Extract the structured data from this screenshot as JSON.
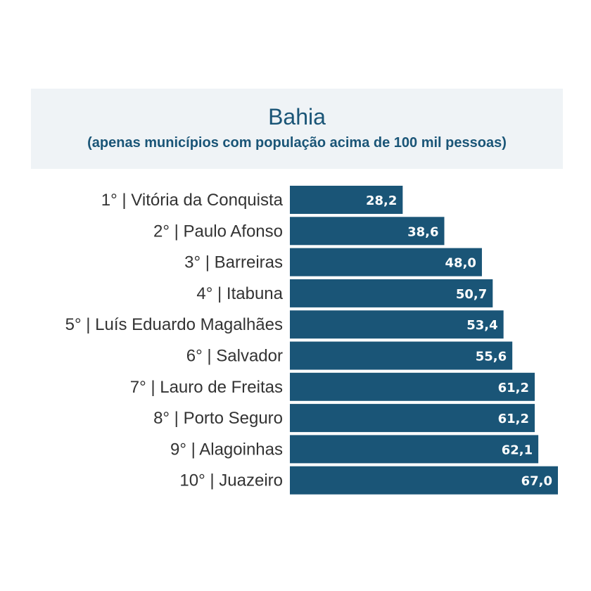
{
  "colors": {
    "bar": "#1a5577",
    "header_bg": "#eff3f6",
    "title": "#1a5577",
    "label": "#333333",
    "value_text": "#ffffff"
  },
  "chart_data": {
    "type": "bar",
    "orientation": "horizontal",
    "title": "Bahia",
    "subtitle": "(apenas municípios com população acima de 100 mil pessoas)",
    "categories": [
      "1° | Vitória da Conquista",
      "2° | Paulo Afonso",
      "3° | Barreiras",
      "4° | Itabuna",
      "5° | Luís Eduardo Magalhães",
      "6° | Salvador",
      "7° | Lauro de Freitas",
      "8° | Porto Seguro",
      "9° | Alagoinhas",
      "10° | Juazeiro"
    ],
    "values": [
      28.2,
      38.6,
      48.0,
      50.7,
      53.4,
      55.6,
      61.2,
      61.2,
      62.1,
      67.0
    ],
    "value_labels": [
      "28,2",
      "38,6",
      "48,0",
      "50,7",
      "53,4",
      "55,6",
      "61,2",
      "61,2",
      "62,1",
      "67,0"
    ],
    "grid": false,
    "legend": false
  }
}
